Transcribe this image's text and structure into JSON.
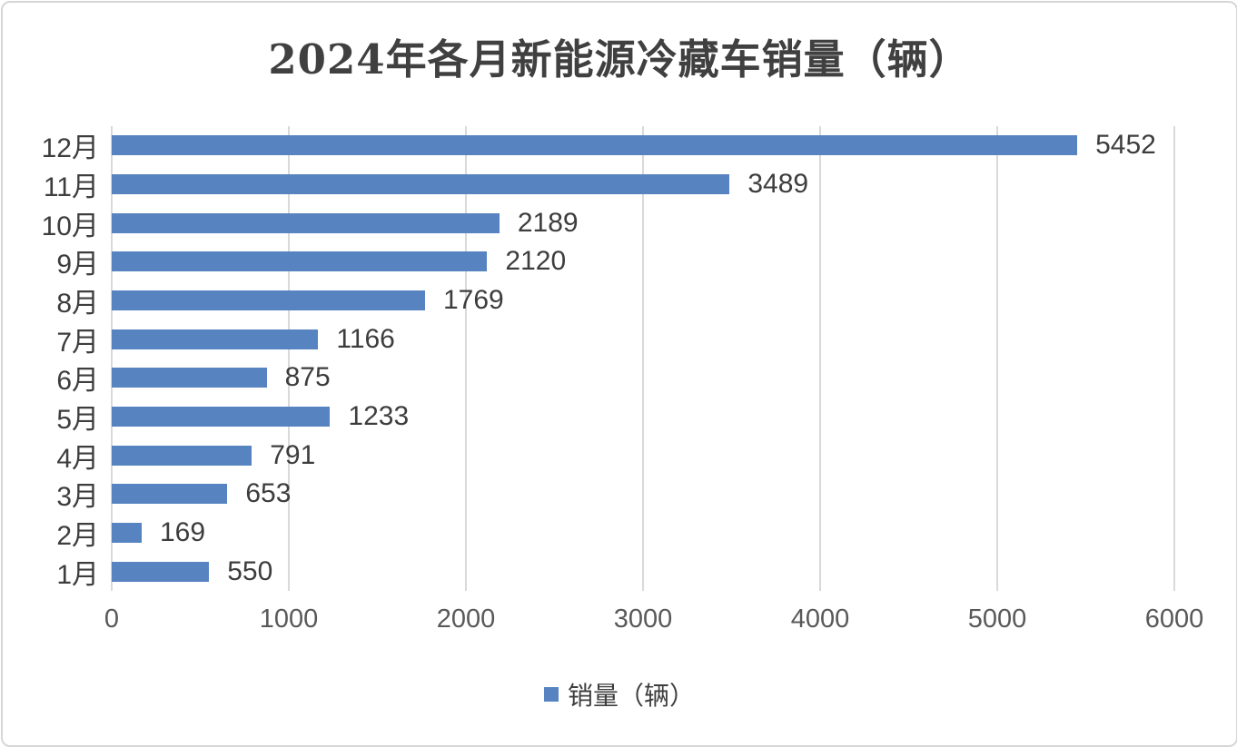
{
  "chart_data": {
    "type": "bar",
    "orientation": "horizontal",
    "title": "2024年各月新能源冷藏车销量（辆）",
    "categories": [
      "12月",
      "11月",
      "10月",
      "9月",
      "8月",
      "7月",
      "6月",
      "5月",
      "4月",
      "3月",
      "2月",
      "1月"
    ],
    "categories_order": "top-to-bottom",
    "series": [
      {
        "name": "销量（辆）",
        "values": [
          5452,
          3489,
          2189,
          2120,
          1769,
          1166,
          875,
          1233,
          791,
          653,
          169,
          550
        ]
      }
    ],
    "xlabel": "",
    "ylabel": "",
    "xlim": [
      0,
      6000
    ],
    "x_ticks": [
      0,
      1000,
      2000,
      3000,
      4000,
      5000,
      6000
    ],
    "grid": true,
    "data_labels": true,
    "legend_position": "bottom",
    "colors": {
      "bar": "#5784c1",
      "gridline": "#d9d9d9",
      "title_text": "#404040",
      "label_text": "#3d3d3d",
      "tick_text": "#595959",
      "border": "#d6d6d6",
      "background": "#ffffff"
    }
  }
}
